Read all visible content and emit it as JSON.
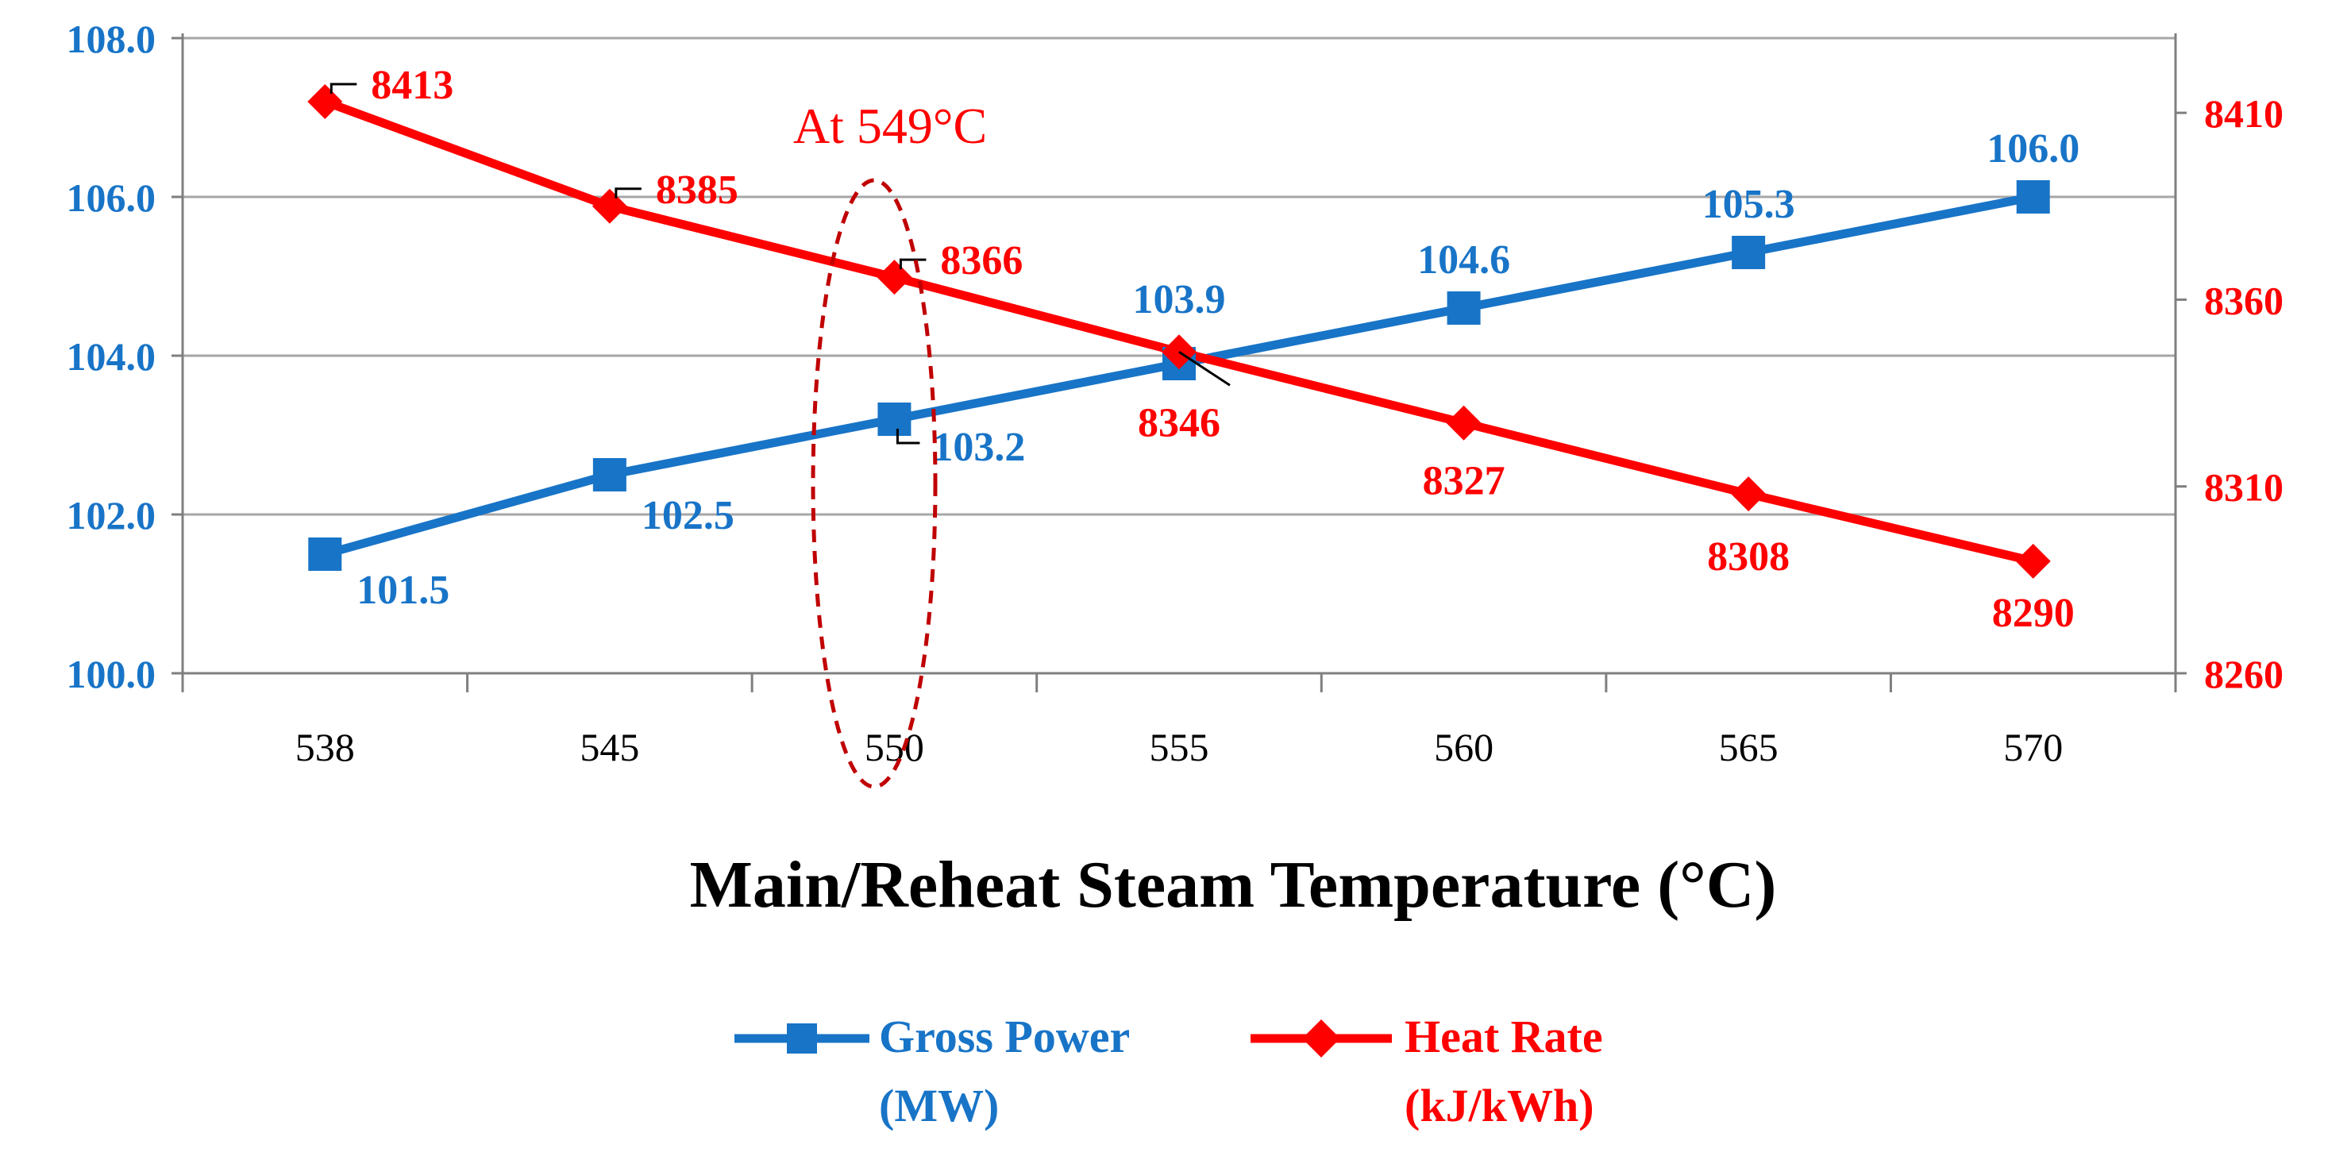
{
  "colors": {
    "power": "#1874C7",
    "heat": "#FF0000",
    "grid": "#A6A6A6",
    "axis": "#7F7F7F",
    "text": "#000000"
  },
  "chart_data": {
    "type": "line",
    "categories": [
      "538",
      "545",
      "550",
      "555",
      "560",
      "565",
      "570"
    ],
    "xlabel": "Main/Reheat Steam Temperature (°C)",
    "annotation": "At 549°C",
    "y_left": {
      "range": [
        100,
        108
      ],
      "ticks": [
        100,
        102,
        104,
        106,
        108
      ],
      "tick_labels": [
        "100.0",
        "102.0",
        "104.0",
        "106.0",
        "108.0"
      ]
    },
    "y_right": {
      "range": [
        8260,
        8430
      ],
      "ticks": [
        8260,
        8310,
        8360,
        8410
      ],
      "tick_labels": [
        "8260",
        "8310",
        "8360",
        "8410"
      ]
    },
    "series": [
      {
        "name": "Gross Power (MW)",
        "legend_line1": "Gross Power",
        "legend_line2": "(MW)",
        "axis": "left",
        "marker": "square",
        "values": [
          101.5,
          102.5,
          103.2,
          103.9,
          104.6,
          105.3,
          106.0
        ],
        "labels": [
          "101.5",
          "102.5",
          "103.2",
          "103.9",
          "104.6",
          "105.3",
          "106.0"
        ]
      },
      {
        "name": "Heat Rate (kJ/kWh)",
        "legend_line1": "Heat Rate",
        "legend_line2": "(kJ/kWh)",
        "axis": "right",
        "marker": "diamond",
        "values": [
          8413,
          8385,
          8366,
          8346,
          8327,
          8308,
          8290
        ],
        "labels": [
          "8413",
          "8385",
          "8366",
          "8346",
          "8327",
          "8308",
          "8290"
        ]
      }
    ]
  }
}
